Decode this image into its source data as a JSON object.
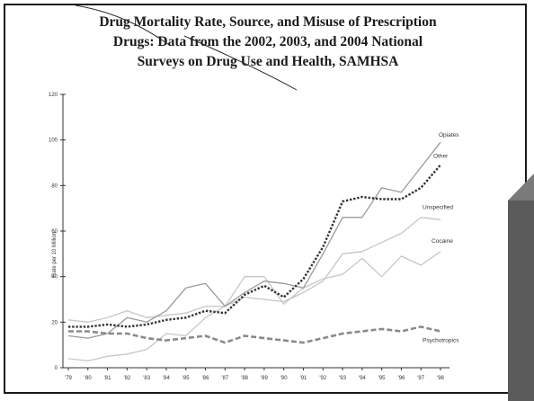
{
  "title_lines": [
    "Drug Mortality Rate, Source, and Misuse of Prescription",
    "Drugs:  Data from the 2002, 2003, and 2004  National",
    "Surveys on Drug Use and Health, SAMHSA"
  ],
  "chart_data": {
    "type": "line",
    "title": "Drug Mortality Rate, Source, and Misuse of Prescription Drugs: Data from the 2002, 2003, and 2004 National Surveys on Drug Use and Health, SAMHSA",
    "xlabel": "",
    "ylabel": "Rate per 10 Million",
    "ylim": [
      0,
      120
    ],
    "yticks": [
      0,
      20,
      40,
      60,
      80,
      100,
      120
    ],
    "grid": false,
    "x": [
      "'79",
      "'80",
      "'81",
      "'82",
      "'83",
      "'84",
      "'85",
      "'86",
      "'87",
      "'88",
      "'89",
      "'90",
      "'91",
      "'92",
      "'93",
      "'94",
      "'95",
      "'96",
      "'97",
      "'98"
    ],
    "series": [
      {
        "name": "Opiates",
        "style": "thin-gray",
        "color": "#9a9a9a",
        "values": [
          14,
          13,
          15,
          22,
          20,
          25,
          35,
          37,
          27,
          33,
          38,
          37,
          35,
          50,
          66,
          66,
          79,
          77,
          88,
          99
        ]
      },
      {
        "name": "Other",
        "style": "dotted-dark",
        "color": "#333333",
        "values": [
          18,
          18,
          19,
          18,
          19,
          21,
          22,
          25,
          24,
          32,
          36,
          31,
          39,
          53,
          73,
          75,
          74,
          74,
          79,
          89
        ]
      },
      {
        "name": "Unspecified",
        "style": "thin-lightgray",
        "color": "#c6c6c6",
        "values": [
          21,
          20,
          22,
          25,
          22,
          23,
          24,
          27,
          27,
          31,
          30,
          29,
          33,
          38,
          50,
          51,
          55,
          59,
          66,
          65
        ]
      },
      {
        "name": "Cocaine",
        "style": "thin-lightgray",
        "color": "#c6c6c6",
        "values": [
          4,
          3,
          5,
          6,
          8,
          15,
          14,
          22,
          27,
          40,
          40,
          28,
          35,
          39,
          41,
          48,
          40,
          49,
          45,
          51
        ]
      },
      {
        "name": "Psychotropics",
        "style": "dashed-gray",
        "color": "#8a8a8a",
        "values": [
          16,
          16,
          15,
          15,
          13,
          12,
          13,
          14,
          11,
          14,
          13,
          12,
          11,
          13,
          15,
          16,
          17,
          16,
          18,
          16
        ]
      }
    ]
  }
}
